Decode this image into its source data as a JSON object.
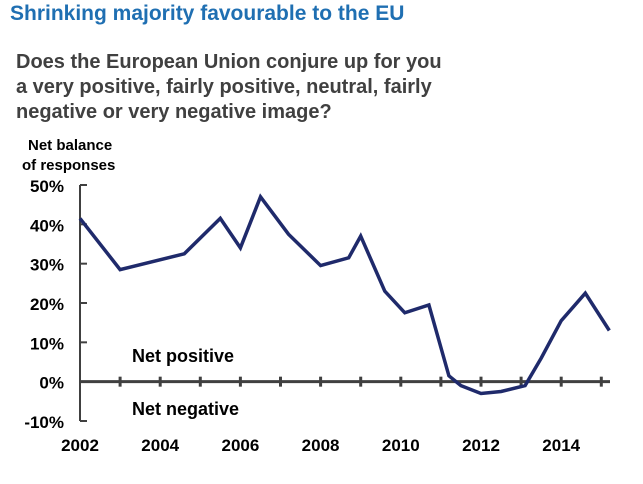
{
  "title": "Shrinking majority favourable to the EU",
  "question": {
    "line1": "Does the European Union conjure up for you",
    "line2": "a very positive, fairly positive, neutral, fairly",
    "line3": "negative or very negative image?"
  },
  "chart_data": {
    "type": "line",
    "ylabel_line1": "Net balance",
    "ylabel_line2": "of responses",
    "ylim": [
      -10,
      50
    ],
    "yticks": [
      50,
      40,
      30,
      20,
      10,
      0,
      -10
    ],
    "ytick_labels": [
      "50%",
      "40%",
      "30%",
      "20%",
      "10%",
      "0%",
      "-10%"
    ],
    "xlim": [
      2002,
      2015.2
    ],
    "xticks": [
      2002,
      2004,
      2006,
      2008,
      2010,
      2012,
      2014
    ],
    "xtick_labels": [
      "2002",
      "2004",
      "2006",
      "2008",
      "2010",
      "2012",
      "2014"
    ],
    "annotations": {
      "positive": "Net positive",
      "negative": "Net negative"
    },
    "line_color": "#1f2a6b",
    "series": [
      {
        "name": "Net balance",
        "x": [
          2002.0,
          2003.0,
          2004.6,
          2005.5,
          2006.0,
          2006.5,
          2007.2,
          2008.0,
          2008.7,
          2009.0,
          2009.6,
          2010.1,
          2010.7,
          2011.2,
          2011.5,
          2012.0,
          2012.5,
          2013.1,
          2013.5,
          2014.0,
          2014.6,
          2015.2
        ],
        "y": [
          41.5,
          28.5,
          32.5,
          41.5,
          34,
          47,
          37.5,
          29.5,
          31.5,
          37,
          23,
          17.5,
          19.5,
          1.5,
          -1,
          -3,
          -2.5,
          -1,
          6,
          15.5,
          22.5,
          13
        ]
      }
    ]
  }
}
